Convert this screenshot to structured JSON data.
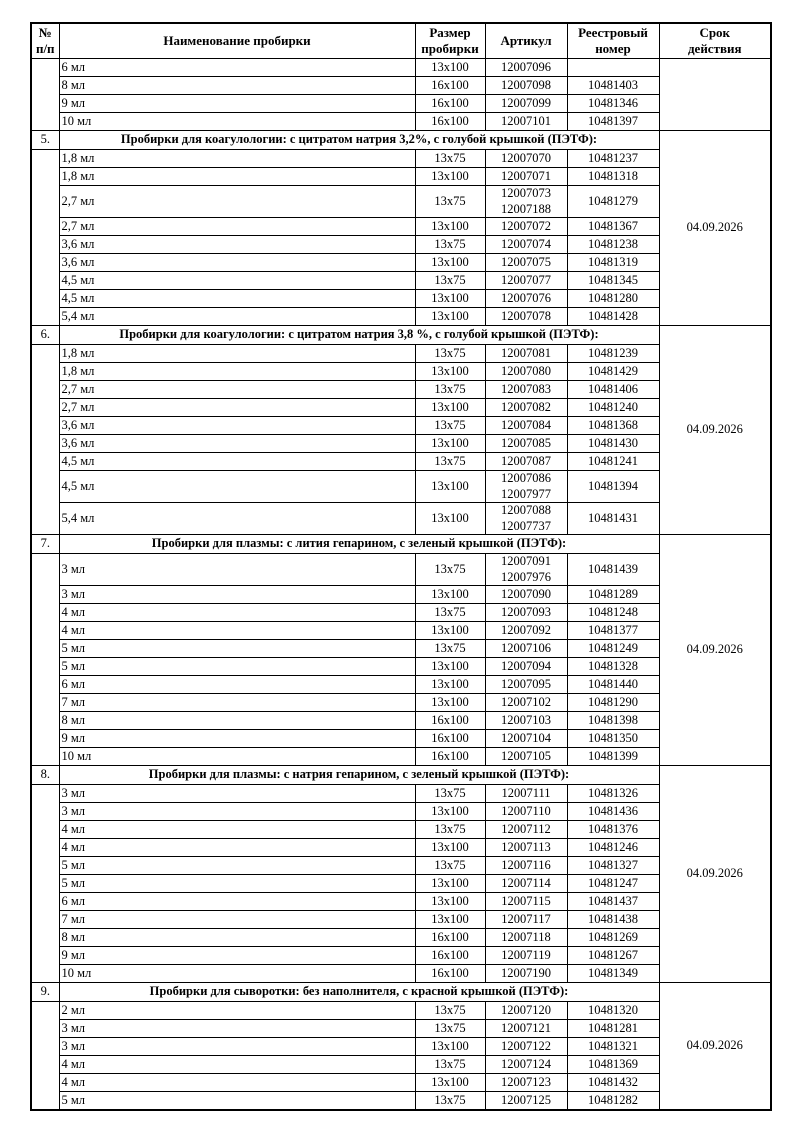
{
  "validity_date": "04.09.2026",
  "table": {
    "columns": [
      {
        "label": "№\nп/п"
      },
      {
        "label": "Наименование пробирки"
      },
      {
        "label": "Размер\nпробирки"
      },
      {
        "label": "Артикул"
      },
      {
        "label": "Реестровый\nномер"
      },
      {
        "label": "Срок\nдействия"
      }
    ],
    "groups": [
      {
        "num": "",
        "title": "",
        "validity": "",
        "rows": [
          {
            "name": "6 мл",
            "size": "13x100",
            "articles": [
              "12007096"
            ],
            "registry": ""
          },
          {
            "name": "8 мл",
            "size": "16x100",
            "articles": [
              "12007098"
            ],
            "registry": "10481403"
          },
          {
            "name": "9 мл",
            "size": "16x100",
            "articles": [
              "12007099"
            ],
            "registry": "10481346"
          },
          {
            "name": "10 мл",
            "size": "16x100",
            "articles": [
              "12007101"
            ],
            "registry": "10481397"
          }
        ]
      },
      {
        "num": "5.",
        "title": "Пробирки для коагулологии: с цитратом натрия 3,2%, с голубой крышкой (ПЭТФ):",
        "validity": "04.09.2026",
        "rows": [
          {
            "name": "1,8 мл",
            "size": "13x75",
            "articles": [
              "12007070"
            ],
            "registry": "10481237"
          },
          {
            "name": "1,8 мл",
            "size": "13x100",
            "articles": [
              "12007071"
            ],
            "registry": "10481318"
          },
          {
            "name": "2,7 мл",
            "size": "13x75",
            "articles": [
              "12007073",
              "12007188"
            ],
            "registry": "10481279"
          },
          {
            "name": "2,7 мл",
            "size": "13x100",
            "articles": [
              "12007072"
            ],
            "registry": "10481367"
          },
          {
            "name": "3,6 мл",
            "size": "13x75",
            "articles": [
              "12007074"
            ],
            "registry": "10481238"
          },
          {
            "name": "3,6 мл",
            "size": "13x100",
            "articles": [
              "12007075"
            ],
            "registry": "10481319"
          },
          {
            "name": "4,5 мл",
            "size": "13x75",
            "articles": [
              "12007077"
            ],
            "registry": "10481345"
          },
          {
            "name": "4,5 мл",
            "size": "13x100",
            "articles": [
              "12007076"
            ],
            "registry": "10481280"
          },
          {
            "name": "5,4 мл",
            "size": "13x100",
            "articles": [
              "12007078"
            ],
            "registry": "10481428"
          }
        ]
      },
      {
        "num": "6.",
        "title": "Пробирки для коагулологии: с цитратом натрия 3,8 %, с голубой крышкой (ПЭТФ):",
        "validity": "04.09.2026",
        "rows": [
          {
            "name": "1,8 мл",
            "size": "13x75",
            "articles": [
              "12007081"
            ],
            "registry": "10481239"
          },
          {
            "name": "1,8 мл",
            "size": "13x100",
            "articles": [
              "12007080"
            ],
            "registry": "10481429"
          },
          {
            "name": "2,7 мл",
            "size": "13x75",
            "articles": [
              "12007083"
            ],
            "registry": "10481406"
          },
          {
            "name": "2,7 мл",
            "size": "13x100",
            "articles": [
              "12007082"
            ],
            "registry": "10481240"
          },
          {
            "name": "3,6 мл",
            "size": "13x75",
            "articles": [
              "12007084"
            ],
            "registry": "10481368"
          },
          {
            "name": "3,6 мл",
            "size": "13x100",
            "articles": [
              "12007085"
            ],
            "registry": "10481430"
          },
          {
            "name": "4,5 мл",
            "size": "13x75",
            "articles": [
              "12007087"
            ],
            "registry": "10481241"
          },
          {
            "name": "4,5 мл",
            "size": "13x100",
            "articles": [
              "12007086",
              "12007977"
            ],
            "registry": "10481394"
          },
          {
            "name": "5,4 мл",
            "size": "13x100",
            "articles": [
              "12007088",
              "12007737"
            ],
            "registry": "10481431"
          }
        ]
      },
      {
        "num": "7.",
        "title": "Пробирки для плазмы: с лития гепарином, с зеленый крышкой (ПЭТФ):",
        "validity": "04.09.2026",
        "rows": [
          {
            "name": "3 мл",
            "size": "13x75",
            "articles": [
              "12007091",
              "12007976"
            ],
            "registry": "10481439"
          },
          {
            "name": "3 мл",
            "size": "13x100",
            "articles": [
              "12007090"
            ],
            "registry": "10481289"
          },
          {
            "name": "4 мл",
            "size": "13x75",
            "articles": [
              "12007093"
            ],
            "registry": "10481248"
          },
          {
            "name": "4 мл",
            "size": "13x100",
            "articles": [
              "12007092"
            ],
            "registry": "10481377"
          },
          {
            "name": "5 мл",
            "size": "13x75",
            "articles": [
              "12007106"
            ],
            "registry": "10481249"
          },
          {
            "name": "5 мл",
            "size": "13x100",
            "articles": [
              "12007094"
            ],
            "registry": "10481328"
          },
          {
            "name": "6 мл",
            "size": "13x100",
            "articles": [
              "12007095"
            ],
            "registry": "10481440"
          },
          {
            "name": "7 мл",
            "size": "13x100",
            "articles": [
              "12007102"
            ],
            "registry": "10481290"
          },
          {
            "name": "8 мл",
            "size": "16x100",
            "articles": [
              "12007103"
            ],
            "registry": "10481398"
          },
          {
            "name": "9 мл",
            "size": "16x100",
            "articles": [
              "12007104"
            ],
            "registry": "10481350"
          },
          {
            "name": "10 мл",
            "size": "16x100",
            "articles": [
              "12007105"
            ],
            "registry": "10481399"
          }
        ]
      },
      {
        "num": "8.",
        "title": "Пробирки для плазмы: с натрия гепарином, с зеленый крышкой (ПЭТФ):",
        "validity": "04.09.2026",
        "rows": [
          {
            "name": "3 мл",
            "size": "13x75",
            "articles": [
              "12007111"
            ],
            "registry": "10481326"
          },
          {
            "name": "3 мл",
            "size": "13x100",
            "articles": [
              "12007110"
            ],
            "registry": "10481436"
          },
          {
            "name": "4 мл",
            "size": "13x75",
            "articles": [
              "12007112"
            ],
            "registry": "10481376"
          },
          {
            "name": "4 мл",
            "size": "13x100",
            "articles": [
              "12007113"
            ],
            "registry": "10481246"
          },
          {
            "name": "5 мл",
            "size": "13x75",
            "articles": [
              "12007116"
            ],
            "registry": "10481327"
          },
          {
            "name": "5 мл",
            "size": "13x100",
            "articles": [
              "12007114"
            ],
            "registry": "10481247"
          },
          {
            "name": "6 мл",
            "size": "13x100",
            "articles": [
              "12007115"
            ],
            "registry": "10481437"
          },
          {
            "name": "7 мл",
            "size": "13x100",
            "articles": [
              "12007117"
            ],
            "registry": "10481438"
          },
          {
            "name": "8 мл",
            "size": "16x100",
            "articles": [
              "12007118"
            ],
            "registry": "10481269"
          },
          {
            "name": "9 мл",
            "size": "16x100",
            "articles": [
              "12007119"
            ],
            "registry": "10481267"
          },
          {
            "name": "10 мл",
            "size": "16x100",
            "articles": [
              "12007190"
            ],
            "registry": "10481349"
          }
        ]
      },
      {
        "num": "9.",
        "title": "Пробирки для сыворотки: без наполнителя, с красной крышкой (ПЭТФ):",
        "validity": "04.09.2026",
        "rows": [
          {
            "name": "2 мл",
            "size": "13x75",
            "articles": [
              "12007120"
            ],
            "registry": "10481320"
          },
          {
            "name": "3 мл",
            "size": "13x75",
            "articles": [
              "12007121"
            ],
            "registry": "10481281"
          },
          {
            "name": "3 мл",
            "size": "13x100",
            "articles": [
              "12007122"
            ],
            "registry": "10481321"
          },
          {
            "name": "4 мл",
            "size": "13x75",
            "articles": [
              "12007124"
            ],
            "registry": "10481369"
          },
          {
            "name": "4 мл",
            "size": "13x100",
            "articles": [
              "12007123"
            ],
            "registry": "10481432"
          },
          {
            "name": "5 мл",
            "size": "13x75",
            "articles": [
              "12007125"
            ],
            "registry": "10481282"
          }
        ]
      }
    ]
  }
}
